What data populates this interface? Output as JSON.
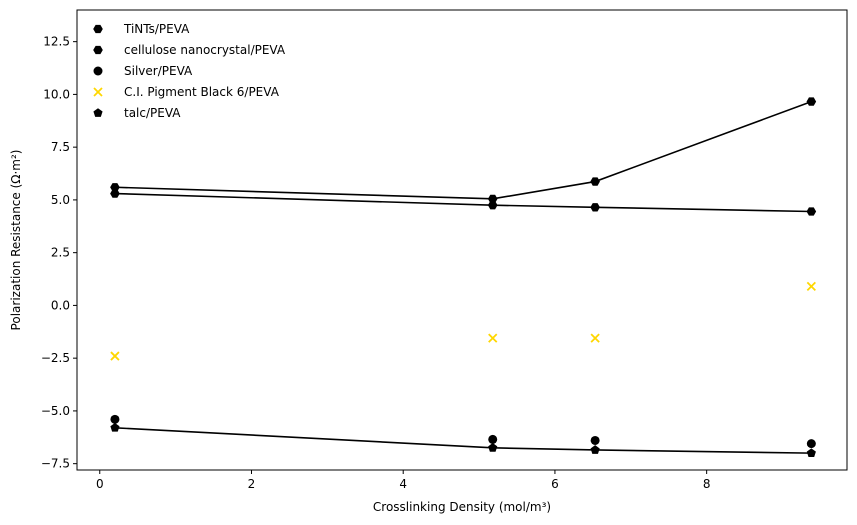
{
  "chart_data": {
    "type": "scatter",
    "xlabel": "Crosslinking Density (mol/m³)",
    "ylabel": "Polarization Resistance (Ω·m²)",
    "xlim": [
      -0.3,
      9.85
    ],
    "ylim": [
      -7.8,
      14.0
    ],
    "xticks": [
      0,
      2,
      4,
      6,
      8
    ],
    "yticks": [
      -7.5,
      -5.0,
      -2.5,
      0.0,
      2.5,
      5.0,
      7.5,
      10.0,
      12.5
    ],
    "xtick_labels": [
      "0",
      "2",
      "4",
      "6",
      "8"
    ],
    "ytick_labels": [
      "−7.5",
      "−5.0",
      "−2.5",
      "0.0",
      "2.5",
      "5.0",
      "7.5",
      "10.0",
      "12.5"
    ],
    "grid": false,
    "legend_position": "top-left",
    "series": [
      {
        "name": "TiNTs/PEVA",
        "marker": "hexagon",
        "color": "#000000",
        "x": [
          0.2,
          5.18,
          6.53,
          9.38
        ],
        "y": [
          5.6,
          5.05,
          5.87,
          9.66
        ],
        "fit_line": true
      },
      {
        "name": "cellulose nanocrystal/PEVA",
        "marker": "hexagon",
        "color": "#000000",
        "x": [
          0.2,
          5.18,
          6.53,
          9.38
        ],
        "y": [
          5.3,
          4.75,
          4.65,
          4.45
        ],
        "fit_line": true
      },
      {
        "name": "Silver/PEVA",
        "marker": "circle",
        "color": "#000000",
        "x": [
          0.2,
          5.18,
          6.53,
          9.38
        ],
        "y": [
          -5.4,
          -6.35,
          -6.4,
          -6.55
        ],
        "fit_line": false
      },
      {
        "name": "C.I. Pigment Black 6/PEVA",
        "marker": "x",
        "color": "#ffd700",
        "x": [
          0.2,
          5.18,
          6.53,
          9.38
        ],
        "y": [
          -2.4,
          -1.55,
          -1.55,
          0.9
        ],
        "fit_line": false
      },
      {
        "name": "talc/PEVA",
        "marker": "pentagon",
        "color": "#000000",
        "x": [
          0.2,
          5.18,
          6.53,
          9.38
        ],
        "y": [
          -5.8,
          -6.75,
          -6.85,
          -7.0
        ],
        "fit_line": true
      }
    ]
  }
}
